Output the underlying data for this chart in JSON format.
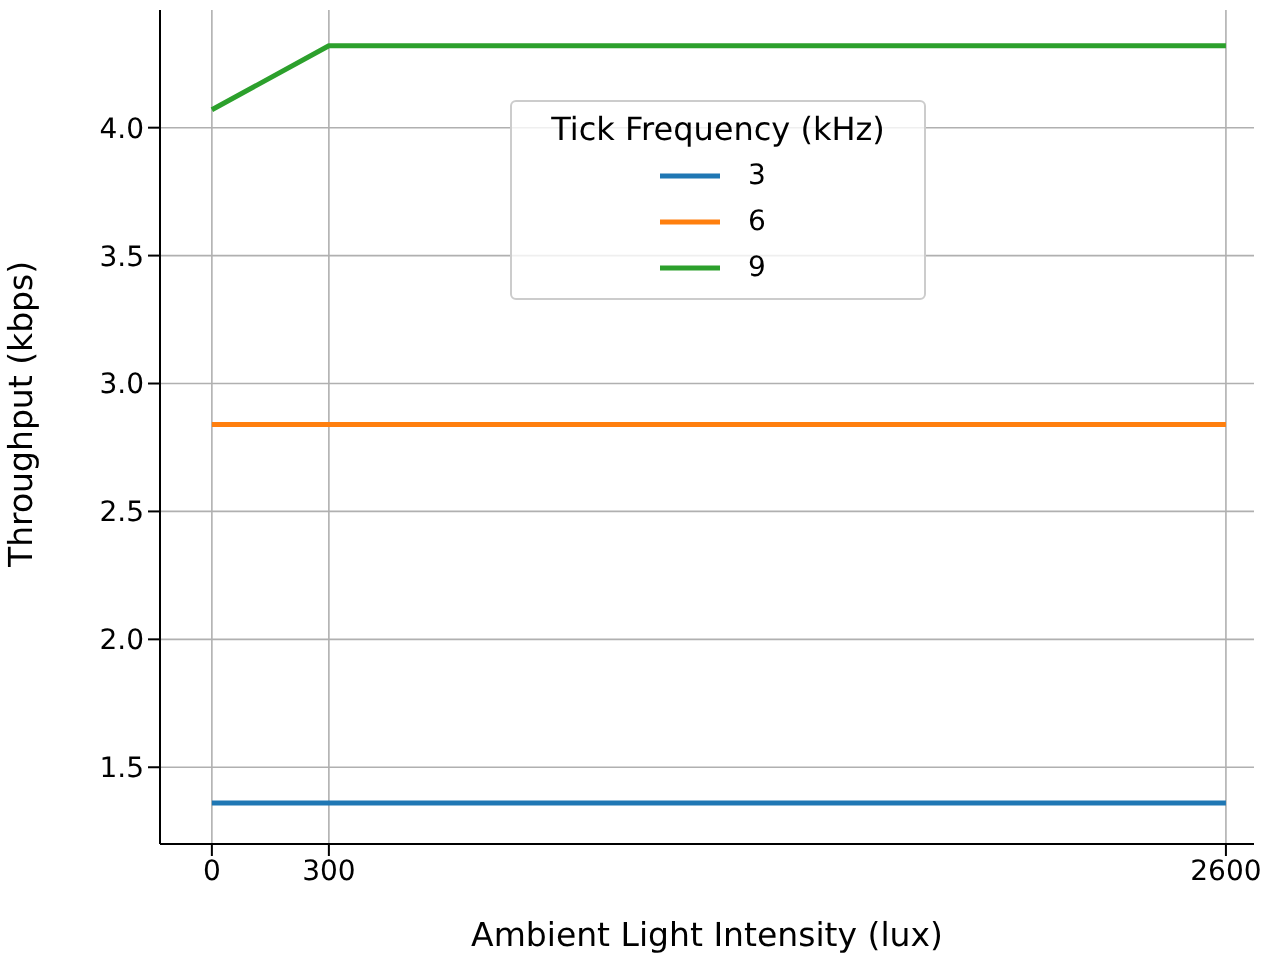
{
  "chart_data": {
    "type": "line",
    "xlabel": "Ambient Light Intensity (lux)",
    "ylabel": "Throughput (kbps)",
    "legend_title": "Tick Frequency (kHz)",
    "x": [
      0,
      300,
      2600
    ],
    "series": [
      {
        "name": "3",
        "color": "#1f77b4",
        "values": [
          1.36,
          1.36,
          1.36
        ]
      },
      {
        "name": "6",
        "color": "#ff7f0e",
        "values": [
          2.84,
          2.84,
          2.84
        ]
      },
      {
        "name": "9",
        "color": "#2ca02c",
        "values": [
          4.07,
          4.32,
          4.32
        ]
      }
    ],
    "xlim": [
      -133,
      2672
    ],
    "ylim": [
      1.2,
      4.46
    ],
    "xticks": [
      0,
      300,
      2600
    ],
    "yticks": [
      1.5,
      {
        "value": 2,
        "label": "2.0"
      },
      2.5,
      {
        "value": 3,
        "label": "3.0"
      },
      3.5,
      {
        "value": 4,
        "label": "4.0"
      }
    ],
    "grid": true,
    "legend": "top",
    "marker": "none",
    "line_style": "solid"
  }
}
